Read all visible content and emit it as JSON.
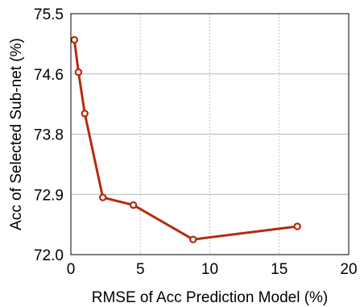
{
  "chart_data": {
    "type": "line",
    "title": "",
    "xlabel": "RMSE of Acc Prediction Model (%)",
    "ylabel": "Acc of Selected Sub-net (%)",
    "xlim": [
      0,
      20
    ],
    "ylim": [
      72.0,
      75.5
    ],
    "xticks": [
      0,
      5,
      10,
      15,
      20
    ],
    "xtick_labels": [
      "0",
      "5",
      "10",
      "15",
      "20"
    ],
    "yticks": [
      72.0,
      72.875,
      73.75,
      74.625,
      75.5
    ],
    "ytick_labels": [
      "72.0",
      "72.9",
      "73.8",
      "74.6",
      "75.5"
    ],
    "grid": {
      "x": "dotted vertical",
      "y": "solid horizontal"
    },
    "legend": "none",
    "series": [
      {
        "color": "#b22c10",
        "marker": "open-circle",
        "points": [
          {
            "x": 0.25,
            "y": 75.12
          },
          {
            "x": 0.55,
            "y": 74.65
          },
          {
            "x": 1.0,
            "y": 74.05
          },
          {
            "x": 2.3,
            "y": 72.83
          },
          {
            "x": 4.5,
            "y": 72.72
          },
          {
            "x": 8.8,
            "y": 72.22
          },
          {
            "x": 16.3,
            "y": 72.41
          }
        ]
      }
    ]
  }
}
